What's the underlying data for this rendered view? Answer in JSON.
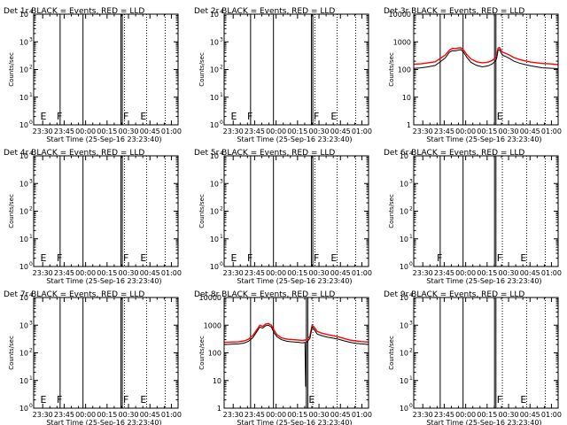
{
  "colors": {
    "events": "#000000",
    "lld": "#ff0000",
    "background": "#ffffff"
  },
  "common": {
    "xlabel": "Start Time (25-Sep-16 23:23:40)",
    "ylabel": "Counts/sec",
    "xticks": [
      {
        "t": 6.33,
        "label": "23:30"
      },
      {
        "t": 21.33,
        "label": "23:45"
      },
      {
        "t": 36.33,
        "label": "00:00"
      },
      {
        "t": 51.33,
        "label": "00:15"
      },
      {
        "t": 66.33,
        "label": "00:30"
      },
      {
        "t": 81.33,
        "label": "00:45"
      },
      {
        "t": 96.33,
        "label": "01:00"
      }
    ],
    "xlim_minutes": [
      0,
      101
    ],
    "ylim": [
      1,
      10000
    ],
    "yscale": "log",
    "sup_ticks": [
      {
        "v": 1,
        "label": "10",
        "exp": "0"
      },
      {
        "v": 10,
        "label": "10",
        "exp": "1"
      },
      {
        "v": 100,
        "label": "10",
        "exp": "2"
      },
      {
        "v": 1000,
        "label": "10",
        "exp": "3"
      },
      {
        "v": 10000,
        "label": "10",
        "exp": "4"
      }
    ],
    "plain_ticks": [
      {
        "v": 1,
        "label": "1"
      },
      {
        "v": 10,
        "label": "10"
      },
      {
        "v": 100,
        "label": "100"
      },
      {
        "v": 1000,
        "label": "1000"
      },
      {
        "v": 10000,
        "label": "10000"
      }
    ]
  },
  "chart_data": [
    {
      "type": "line",
      "title": "Det 1r BLACK = Events, RED = LLD",
      "ytick_style": "sup",
      "markers": [
        {
          "t": 4.0,
          "label": "E"
        },
        {
          "t": 15.5,
          "label": "F"
        },
        {
          "t": 62.0,
          "label": "F"
        },
        {
          "t": 74.0,
          "label": "E"
        }
      ],
      "solid_lines": [
        18.5,
        34.5,
        61.0,
        62.0
      ],
      "dotted_lines": [
        63.5,
        79.0,
        92.0
      ],
      "series": []
    },
    {
      "type": "line",
      "title": "Det 2r BLACK = Events, RED = LLD",
      "ytick_style": "sup",
      "markers": [
        {
          "t": 4.0,
          "label": "E"
        },
        {
          "t": 15.5,
          "label": "F"
        },
        {
          "t": 62.0,
          "label": "F"
        },
        {
          "t": 74.0,
          "label": "E"
        }
      ],
      "solid_lines": [
        18.5,
        34.5,
        61.0,
        62.0
      ],
      "dotted_lines": [
        63.5,
        79.0,
        92.0
      ],
      "series": []
    },
    {
      "type": "line",
      "title": "Det 3r BLACK = Events, RED = LLD",
      "ytick_style": "plain",
      "markers": [
        {
          "t": 57.5,
          "label": "E"
        }
      ],
      "solid_lines": [
        18.5,
        34.5,
        56.5,
        57.5
      ],
      "dotted_lines": [
        62.0,
        79.0,
        92.0
      ],
      "series": [
        {
          "name": "LLD",
          "color": "lld",
          "x": [
            0,
            5,
            10,
            15,
            18,
            22,
            25,
            27,
            29,
            31,
            33,
            35,
            37,
            40,
            44,
            48,
            52,
            55,
            57,
            58,
            59,
            60,
            62,
            64,
            67,
            70,
            74,
            78,
            82,
            86,
            90,
            95,
            101
          ],
          "y": [
            155,
            160,
            175,
            190,
            240,
            330,
            500,
            580,
            560,
            600,
            610,
            500,
            350,
            240,
            190,
            175,
            185,
            215,
            260,
            320,
            600,
            620,
            420,
            390,
            330,
            270,
            230,
            205,
            185,
            175,
            165,
            160,
            150
          ]
        },
        {
          "name": "Events",
          "color": "events",
          "x": [
            0,
            5,
            10,
            15,
            18,
            22,
            25,
            27,
            29,
            31,
            33,
            35,
            37,
            40,
            44,
            48,
            52,
            55,
            57,
            58,
            59,
            60,
            62,
            64,
            67,
            70,
            74,
            78,
            82,
            86,
            90,
            95,
            101
          ],
          "y": [
            110,
            115,
            125,
            140,
            180,
            260,
            420,
            480,
            470,
            500,
            520,
            410,
            280,
            180,
            140,
            125,
            135,
            160,
            200,
            250,
            500,
            520,
            330,
            300,
            250,
            200,
            170,
            150,
            135,
            125,
            115,
            112,
            108
          ]
        }
      ]
    },
    {
      "type": "line",
      "title": "Det 4r BLACK = Events, RED = LLD",
      "ytick_style": "sup",
      "markers": [
        {
          "t": 4.0,
          "label": "E"
        },
        {
          "t": 15.5,
          "label": "F"
        },
        {
          "t": 62.0,
          "label": "F"
        },
        {
          "t": 74.0,
          "label": "E"
        }
      ],
      "solid_lines": [
        18.5,
        34.5,
        61.0,
        62.0
      ],
      "dotted_lines": [
        63.5,
        79.0,
        92.0
      ],
      "series": []
    },
    {
      "type": "line",
      "title": "Det 5r BLACK = Events, RED = LLD",
      "ytick_style": "sup",
      "markers": [
        {
          "t": 4.0,
          "label": "E"
        },
        {
          "t": 15.5,
          "label": "F"
        },
        {
          "t": 62.0,
          "label": "F"
        },
        {
          "t": 74.0,
          "label": "E"
        }
      ],
      "solid_lines": [
        18.5,
        34.5,
        61.0,
        62.0
      ],
      "dotted_lines": [
        63.5,
        79.0,
        92.0
      ],
      "series": []
    },
    {
      "type": "line",
      "title": "Det 6r BLACK = Events, RED = LLD",
      "ytick_style": "sup",
      "markers": [
        {
          "t": 15.5,
          "label": "F"
        },
        {
          "t": 57.5,
          "label": "F"
        },
        {
          "t": 74.0,
          "label": "E"
        }
      ],
      "solid_lines": [
        18.5,
        34.5,
        56.5,
        57.5
      ],
      "dotted_lines": [
        62.0,
        79.0,
        92.0
      ],
      "series": []
    },
    {
      "type": "line",
      "title": "Det 7r BLACK = Events, RED = LLD",
      "ytick_style": "sup",
      "markers": [
        {
          "t": 4.0,
          "label": "E"
        },
        {
          "t": 15.5,
          "label": "F"
        },
        {
          "t": 62.0,
          "label": "F"
        },
        {
          "t": 74.0,
          "label": "E"
        }
      ],
      "solid_lines": [
        18.5,
        34.5,
        61.0,
        62.0
      ],
      "dotted_lines": [
        63.5,
        79.0,
        92.0
      ],
      "series": []
    },
    {
      "type": "line",
      "title": "Det 8r BLACK = Events, RED = LLD",
      "ytick_style": "plain",
      "markers": [
        {
          "t": 58.5,
          "label": "E"
        }
      ],
      "solid_lines": [
        18.5,
        34.5,
        57.5,
        58.5
      ],
      "dotted_lines": [
        62.0,
        79.0,
        92.0
      ],
      "series": [
        {
          "name": "LLD",
          "color": "lld",
          "x": [
            0,
            5,
            10,
            14,
            17,
            20,
            23,
            25,
            27,
            29,
            31,
            33,
            35,
            37,
            40,
            44,
            48,
            52,
            55,
            58,
            60,
            61.5,
            63,
            65,
            68,
            72,
            76,
            80,
            84,
            88,
            92,
            96,
            101
          ],
          "y": [
            240,
            245,
            250,
            270,
            310,
            420,
            700,
            1000,
            900,
            1100,
            1150,
            1000,
            650,
            450,
            350,
            310,
            300,
            290,
            280,
            300,
            400,
            1000,
            850,
            600,
            520,
            460,
            420,
            380,
            330,
            290,
            270,
            255,
            245
          ]
        },
        {
          "name": "Events",
          "color": "events",
          "x": [
            0,
            5,
            10,
            14,
            17,
            20,
            23,
            25,
            27,
            29,
            31,
            33,
            35,
            37,
            40,
            44,
            48,
            52,
            55,
            56.5,
            57,
            57.5,
            58,
            60,
            61.5,
            63,
            65,
            68,
            72,
            76,
            80,
            84,
            88,
            92,
            96,
            101
          ],
          "y": [
            200,
            205,
            210,
            225,
            260,
            350,
            600,
            850,
            780,
            950,
            1000,
            850,
            520,
            380,
            300,
            260,
            250,
            240,
            230,
            240,
            6,
            240,
            250,
            330,
            850,
            700,
            480,
            420,
            370,
            340,
            310,
            270,
            240,
            220,
            210,
            200
          ]
        }
      ]
    },
    {
      "type": "line",
      "title": "Det 9r BLACK = Events, RED = LLD",
      "ytick_style": "sup",
      "markers": [
        {
          "t": 57.5,
          "label": "F"
        },
        {
          "t": 74.0,
          "label": "E"
        }
      ],
      "solid_lines": [
        18.5,
        34.5,
        56.5,
        57.5
      ],
      "dotted_lines": [
        62.0,
        79.0,
        92.0
      ],
      "series": []
    }
  ]
}
